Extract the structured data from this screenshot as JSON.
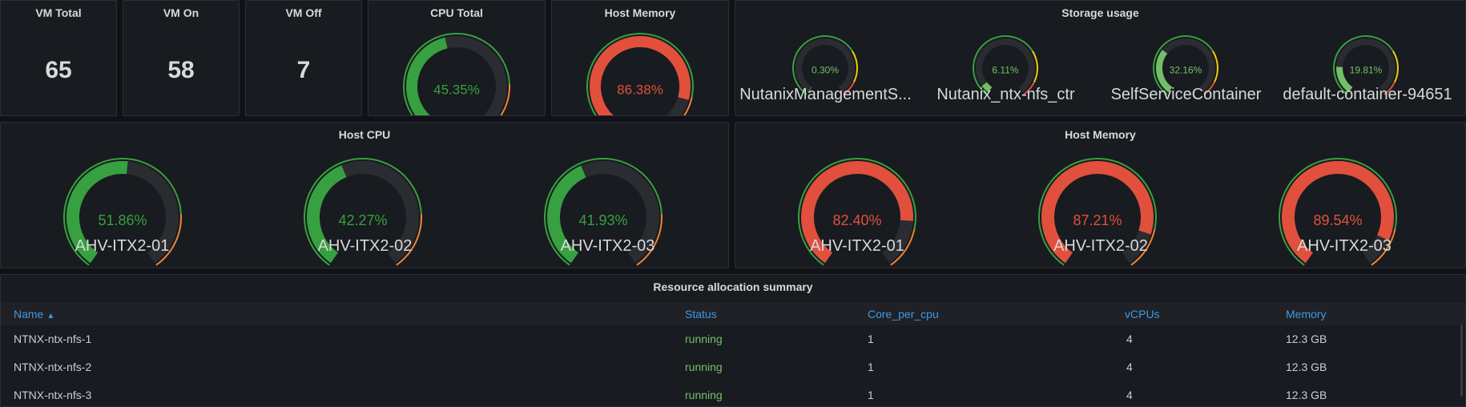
{
  "colors": {
    "green": "#37a040",
    "red": "#e0503d",
    "orange": "#ef8434",
    "yellow": "#f2cc0c",
    "track": "#2a2c31",
    "light_green": "#73bf69",
    "link": "#3d9ae8"
  },
  "stats": [
    {
      "title": "VM Total",
      "value": "65"
    },
    {
      "title": "VM On",
      "value": "58"
    },
    {
      "title": "VM Off",
      "value": "7"
    }
  ],
  "cpu_total": {
    "title": "CPU Total",
    "value": 45.35,
    "label": "45.35%"
  },
  "host_memory_total": {
    "title": "Host Memory",
    "value": 86.38,
    "label": "86.38%"
  },
  "storage": {
    "title": "Storage usage",
    "gauges": [
      {
        "name": "NutanixManagementS...",
        "value": 0.3,
        "label": "0.30%"
      },
      {
        "name": "Nutanix_ntx-nfs_ctr",
        "value": 6.11,
        "label": "6.11%"
      },
      {
        "name": "SelfServiceContainer",
        "value": 32.16,
        "label": "32.16%"
      },
      {
        "name": "default-container-94651",
        "value": 19.81,
        "label": "19.81%"
      }
    ]
  },
  "host_cpu": {
    "title": "Host CPU",
    "gauges": [
      {
        "name": "AHV-ITX2-01",
        "value": 51.86,
        "label": "51.86%"
      },
      {
        "name": "AHV-ITX2-02",
        "value": 42.27,
        "label": "42.27%"
      },
      {
        "name": "AHV-ITX2-03",
        "value": 41.93,
        "label": "41.93%"
      }
    ]
  },
  "host_memory": {
    "title": "Host Memory",
    "gauges": [
      {
        "name": "AHV-ITX2-01",
        "value": 82.4,
        "label": "82.40%"
      },
      {
        "name": "AHV-ITX2-02",
        "value": 87.21,
        "label": "87.21%"
      },
      {
        "name": "AHV-ITX2-03",
        "value": 89.54,
        "label": "89.54%"
      }
    ]
  },
  "table": {
    "title": "Resource allocation summary",
    "columns": [
      "Name",
      "Status",
      "Core_per_cpu",
      "vCPUs",
      "Memory"
    ],
    "sort_icon": "▲",
    "rows": [
      [
        "NTNX-ntx-nfs-1",
        "running",
        "1",
        "4",
        "12.3 GB"
      ],
      [
        "NTNX-ntx-nfs-2",
        "running",
        "1",
        "4",
        "12.3 GB"
      ],
      [
        "NTNX-ntx-nfs-3",
        "running",
        "1",
        "4",
        "12.3 GB"
      ]
    ]
  }
}
